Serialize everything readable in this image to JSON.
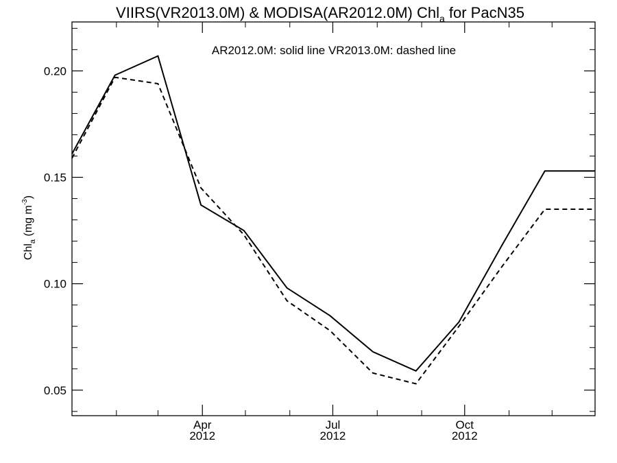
{
  "chart_data": {
    "type": "line",
    "title": {
      "main": "VIIRS(VR2013.0M) & MODISA(AR2012.0M)  Chl",
      "subscript": "a",
      "suffix": " for PacN35"
    },
    "annotation": "AR2012.0M: solid line   VR2013.0M: dashed line",
    "ylabel": {
      "main": "Chl",
      "subscript": "a",
      "unit_prefix": " (mg m",
      "unit_superscript": "-3",
      "unit_suffix": ")"
    },
    "ylim": [
      0.038,
      0.223
    ],
    "xlim": [
      "2012-01-01",
      "2012-12-31"
    ],
    "yticks": [
      {
        "value": 0.05,
        "label": "0.05"
      },
      {
        "value": 0.1,
        "label": "0.10"
      },
      {
        "value": 0.15,
        "label": "0.15"
      },
      {
        "value": 0.2,
        "label": "0.20"
      }
    ],
    "xticks": [
      {
        "date": "2012-04-01",
        "month": "Apr",
        "year": "2012"
      },
      {
        "date": "2012-07-01",
        "month": "Jul",
        "year": "2012"
      },
      {
        "date": "2012-10-01",
        "month": "Oct",
        "year": "2012"
      }
    ],
    "xminor_ticks": [
      "2012-02-01",
      "2012-03-01",
      "2012-05-01",
      "2012-06-01",
      "2012-08-01",
      "2012-09-01",
      "2012-11-01",
      "2012-12-01"
    ],
    "series": [
      {
        "name": "AR2012.0M",
        "style": "solid",
        "x": [
          "2012-01-01",
          "2012-01-31",
          "2012-03-01",
          "2012-03-31",
          "2012-04-30",
          "2012-05-30",
          "2012-06-29",
          "2012-07-29",
          "2012-08-28",
          "2012-09-27",
          "2012-10-27",
          "2012-11-26",
          "2012-12-31"
        ],
        "y": [
          0.161,
          0.198,
          0.207,
          0.137,
          0.125,
          0.098,
          0.085,
          0.068,
          0.059,
          0.082,
          0.118,
          0.153,
          0.153
        ]
      },
      {
        "name": "VR2013.0M",
        "style": "dashed",
        "x": [
          "2012-01-01",
          "2012-01-31",
          "2012-03-01",
          "2012-03-31",
          "2012-04-30",
          "2012-05-30",
          "2012-06-29",
          "2012-07-29",
          "2012-08-28",
          "2012-09-27",
          "2012-10-27",
          "2012-11-26",
          "2012-12-31"
        ],
        "y": [
          0.159,
          0.197,
          0.194,
          0.145,
          0.123,
          0.092,
          0.078,
          0.058,
          0.053,
          0.08,
          0.108,
          0.135,
          0.135
        ]
      }
    ],
    "colors": {
      "axes": "#000000",
      "lines": "#000000",
      "background": "#ffffff"
    },
    "grid": false,
    "legend": "none"
  }
}
